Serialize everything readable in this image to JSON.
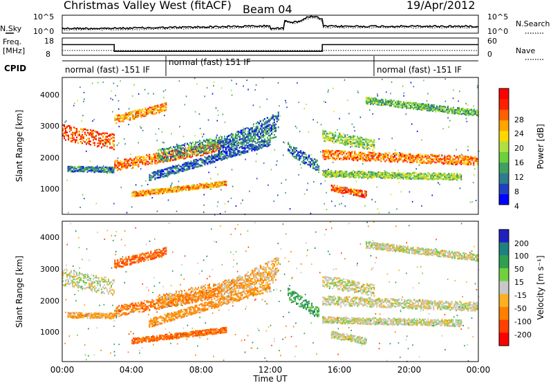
{
  "header": {
    "title": "Christmas Valley West (fitACF)",
    "beam": "Beam 04",
    "date": "19/Apr/2012"
  },
  "noise_panel": {
    "left_label": "N.Sky",
    "right_label": "N.Search",
    "left_ticks": [
      "10^5",
      "10^0"
    ],
    "right_ticks": [
      "10^5",
      "10^0"
    ]
  },
  "freq_panel": {
    "left_label_1": "Freq.",
    "left_label_2": "[MHz]",
    "right_label": "Nave",
    "left_ticks": [
      "18",
      "8"
    ],
    "right_ticks": [
      "60",
      "0"
    ]
  },
  "cpid_panel": {
    "label": "CPID",
    "segments": [
      {
        "text": "normal (fast) -151 IF",
        "start_h": 0,
        "end_h": 6
      },
      {
        "text": "normal (fast) 151 IF",
        "start_h": 6,
        "end_h": 18
      },
      {
        "text": "normal (fast) -151 IF",
        "start_h": 18,
        "end_h": 24
      }
    ]
  },
  "power_panel": {
    "ylabel": "Slant Range [km]",
    "yticks": [
      "4000",
      "3000",
      "2000",
      "1000"
    ],
    "colorbar_label": "Power [dB]",
    "colorbar_ticks": [
      "28",
      "24",
      "20",
      "16",
      "12",
      "8",
      "4"
    ],
    "colors": [
      "#0000ff",
      "#2040c0",
      "#2e7d8c",
      "#3fa060",
      "#6ccf3c",
      "#b0e040",
      "#ffd700",
      "#ffa500",
      "#ff6000",
      "#ff2000",
      "#ff0000"
    ]
  },
  "velocity_panel": {
    "ylabel": "Slant Range [km]",
    "yticks": [
      "4000",
      "3000",
      "2000",
      "1000"
    ],
    "colorbar_label": "Velocity [m s⁻¹]",
    "colorbar_ticks": [
      "200",
      "100",
      "50",
      "15",
      "-15",
      "-50",
      "-100",
      "-200"
    ],
    "colors": [
      "#2020c0",
      "#208080",
      "#30a050",
      "#70d040",
      "#c8c8c8",
      "#ffb020",
      "#ff8000",
      "#ff4000",
      "#ff0000"
    ]
  },
  "xaxis": {
    "label": "Time UT",
    "ticks": [
      "00:00",
      "04:00",
      "08:00",
      "12:00",
      "16:00",
      "20:00",
      "00:00"
    ]
  },
  "chart_data": {
    "type": "heatmap",
    "title": "Christmas Valley West (fitACF)",
    "subtitle": "Beam 04",
    "date": "19/Apr/2012",
    "xlabel": "Time UT",
    "ylabel": "Slant Range [km]",
    "xlim_hours": [
      0,
      24
    ],
    "ylim_km": [
      200,
      4500
    ],
    "power_scale_db": [
      0,
      32
    ],
    "velocity_scale_ms": [
      -250,
      250
    ],
    "frequency_mhz": [
      {
        "start_h": 0,
        "end_h": 3,
        "value": 14.6
      },
      {
        "start_h": 3,
        "end_h": 15,
        "value": 10.2
      },
      {
        "start_h": 15,
        "end_h": 24,
        "value": 14.6
      }
    ],
    "echo_bands": [
      {
        "start_h": 0.0,
        "end_h": 3.0,
        "range_start_km": 2800,
        "range_end_km": 2500,
        "width_km": 500,
        "power_db": 26,
        "velocity_ms": 0
      },
      {
        "start_h": 0.3,
        "end_h": 3.0,
        "range_start_km": 1650,
        "range_end_km": 1620,
        "width_km": 170,
        "power_db": 8,
        "velocity_ms": -30
      },
      {
        "start_h": 3.0,
        "end_h": 9.2,
        "range_start_km": 1750,
        "range_end_km": 2350,
        "width_km": 330,
        "power_db": 24,
        "velocity_ms": -60
      },
      {
        "start_h": 3.0,
        "end_h": 6.0,
        "range_start_km": 3200,
        "range_end_km": 3600,
        "width_km": 260,
        "power_db": 22,
        "velocity_ms": -80
      },
      {
        "start_h": 4.0,
        "end_h": 9.5,
        "range_start_km": 850,
        "range_end_km": 1200,
        "width_km": 160,
        "power_db": 22,
        "velocity_ms": -70
      },
      {
        "start_h": 5.0,
        "end_h": 12.0,
        "range_start_km": 1400,
        "range_end_km": 2500,
        "width_km": 250,
        "power_db": 6,
        "velocity_ms": -40
      },
      {
        "start_h": 5.5,
        "end_h": 12.3,
        "range_start_km": 2050,
        "range_end_km": 2850,
        "width_km": 420,
        "power_db": 10,
        "velocity_ms": -30
      },
      {
        "start_h": 9.0,
        "end_h": 12.5,
        "range_start_km": 2300,
        "range_end_km": 3200,
        "width_km": 500,
        "power_db": 6,
        "velocity_ms": -20
      },
      {
        "start_h": 13.0,
        "end_h": 14.8,
        "range_start_km": 2300,
        "range_end_km": 1700,
        "width_km": 350,
        "power_db": 7,
        "velocity_ms": 50
      },
      {
        "start_h": 15.0,
        "end_h": 24.0,
        "range_start_km": 2100,
        "range_end_km": 1900,
        "width_km": 280,
        "power_db": 24,
        "velocity_ms": 0
      },
      {
        "start_h": 15.0,
        "end_h": 18.0,
        "range_start_km": 2700,
        "range_end_km": 2400,
        "width_km": 350,
        "power_db": 14,
        "velocity_ms": 0
      },
      {
        "start_h": 15.0,
        "end_h": 23.0,
        "range_start_km": 1500,
        "range_end_km": 1400,
        "width_km": 200,
        "power_db": 14,
        "velocity_ms": 0
      },
      {
        "start_h": 15.5,
        "end_h": 17.5,
        "range_start_km": 1050,
        "range_end_km": 850,
        "width_km": 200,
        "power_db": 26,
        "velocity_ms": 0
      },
      {
        "start_h": 17.5,
        "end_h": 24.0,
        "range_start_km": 3800,
        "range_end_km": 3400,
        "width_km": 200,
        "power_db": 12,
        "velocity_ms": 0
      }
    ]
  }
}
